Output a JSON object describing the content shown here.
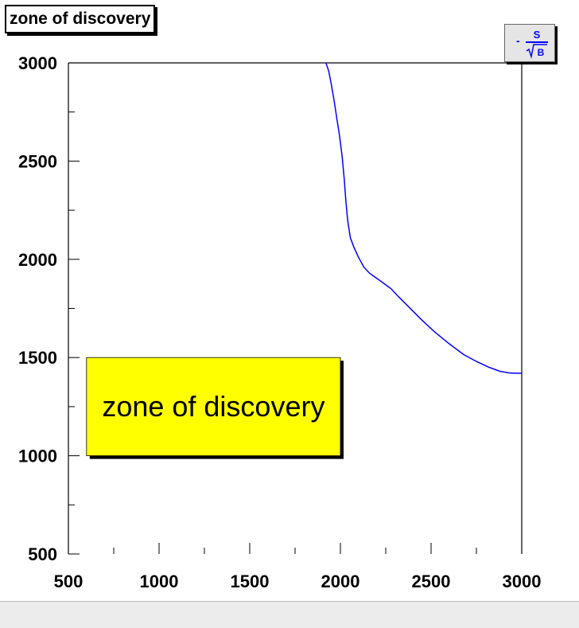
{
  "title": "zone of discovery",
  "legend": {
    "numerator": "S",
    "denominator": "B",
    "sign": "-",
    "color": "#0000ff"
  },
  "chart_data": {
    "type": "line",
    "title": "zone of discovery",
    "xlabel": "",
    "ylabel": "",
    "xlim": [
      500,
      3000
    ],
    "ylim": [
      500,
      3000
    ],
    "x_ticks": [
      500,
      1000,
      1500,
      2000,
      2500,
      3000
    ],
    "y_ticks": [
      500,
      1000,
      1500,
      2000,
      2500,
      3000
    ],
    "x_tick_labels": [
      "500",
      "1000",
      "1500",
      "2000",
      "2500",
      "3000"
    ],
    "y_tick_labels": [
      "500",
      "1000",
      "1500",
      "2000",
      "2500",
      "3000"
    ],
    "grid": false,
    "line_color": "#0000ff",
    "series": [
      {
        "x": [
          1920,
          1935,
          1950,
          1965,
          1980,
          1995,
          2010,
          2022,
          2030,
          2040,
          2055,
          2075,
          2100,
          2130,
          2160,
          2190,
          2220,
          2250,
          2280,
          2320,
          2380,
          2450,
          2520,
          2600,
          2680,
          2750,
          2820,
          2880,
          2930,
          2960,
          3000
        ],
        "y": [
          3000,
          2960,
          2890,
          2810,
          2720,
          2630,
          2520,
          2400,
          2300,
          2200,
          2110,
          2060,
          2010,
          1960,
          1930,
          1910,
          1890,
          1870,
          1850,
          1810,
          1755,
          1690,
          1630,
          1570,
          1515,
          1480,
          1450,
          1430,
          1422,
          1420,
          1420
        ]
      }
    ],
    "annotation": {
      "text": "zone of discovery",
      "x1": 600,
      "x2": 2000,
      "y1": 1000,
      "y2": 1500,
      "fill": "#ffff00"
    }
  }
}
